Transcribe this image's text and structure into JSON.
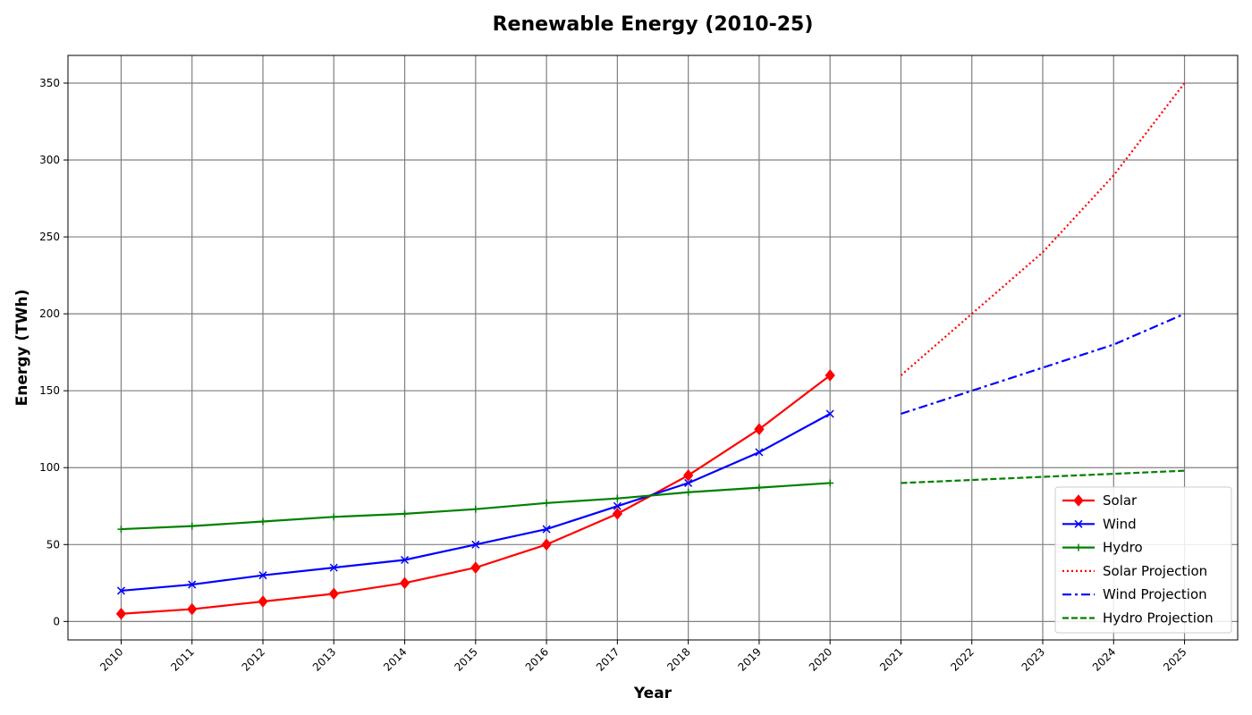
{
  "chart_data": {
    "type": "line",
    "title": "Renewable Energy (2010-25)",
    "xlabel": "Year",
    "ylabel": "Energy (TWh)",
    "x_ticks": [
      "2010",
      "2011",
      "2012",
      "2013",
      "2014",
      "2015",
      "2016",
      "2017",
      "2018",
      "2019",
      "2020",
      "2021",
      "2022",
      "2023",
      "2024",
      "2025"
    ],
    "y_ticks": [
      "0",
      "50",
      "100",
      "150",
      "200",
      "250",
      "300",
      "350"
    ],
    "xlim": [
      2009.25,
      2025.75
    ],
    "ylim": [
      -12,
      368
    ],
    "grid": true,
    "legend_position": "lower-right",
    "series": [
      {
        "name": "Solar",
        "color": "#ff0000",
        "style": "solid",
        "marker": "diamond",
        "x": [
          2010,
          2011,
          2012,
          2013,
          2014,
          2015,
          2016,
          2017,
          2018,
          2019,
          2020
        ],
        "y": [
          5,
          8,
          13,
          18,
          25,
          35,
          50,
          70,
          95,
          125,
          160
        ]
      },
      {
        "name": "Wind",
        "color": "#0000ff",
        "style": "solid",
        "marker": "x",
        "x": [
          2010,
          2011,
          2012,
          2013,
          2014,
          2015,
          2016,
          2017,
          2018,
          2019,
          2020
        ],
        "y": [
          20,
          24,
          30,
          35,
          40,
          50,
          60,
          75,
          90,
          110,
          135
        ]
      },
      {
        "name": "Hydro",
        "color": "#008000",
        "style": "solid",
        "marker": "plus",
        "x": [
          2010,
          2011,
          2012,
          2013,
          2014,
          2015,
          2016,
          2017,
          2018,
          2019,
          2020
        ],
        "y": [
          60,
          62,
          65,
          68,
          70,
          73,
          77,
          80,
          84,
          87,
          90
        ]
      },
      {
        "name": "Solar Projection",
        "color": "#ff0000",
        "style": "dotted",
        "marker": "none",
        "x": [
          2021,
          2022,
          2023,
          2024,
          2025
        ],
        "y": [
          160,
          200,
          240,
          290,
          350
        ]
      },
      {
        "name": "Wind Projection",
        "color": "#0000ff",
        "style": "dashdot",
        "marker": "none",
        "x": [
          2021,
          2022,
          2023,
          2024,
          2025
        ],
        "y": [
          135,
          150,
          165,
          180,
          200
        ]
      },
      {
        "name": "Hydro Projection",
        "color": "#008000",
        "style": "dashed",
        "marker": "none",
        "x": [
          2021,
          2022,
          2023,
          2024,
          2025
        ],
        "y": [
          90,
          92,
          94,
          96,
          98
        ]
      }
    ]
  }
}
